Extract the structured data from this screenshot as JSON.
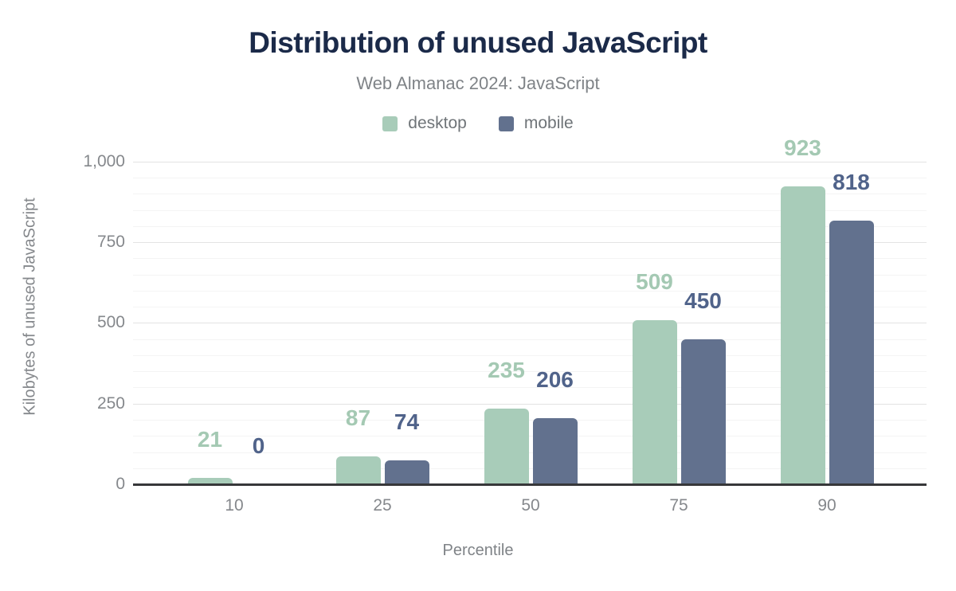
{
  "title": "Distribution of unused JavaScript",
  "subtitle": "Web Almanac 2024: JavaScript",
  "x_axis_title": "Percentile",
  "y_axis_title": "Kilobytes of unused JavaScript",
  "colors": {
    "title_navy": "#1b2a49",
    "text_gray": "#7f8387",
    "tick_gray": "#85888c",
    "desktop_green": "#a8ccb9",
    "mobile_slate": "#62718e",
    "desktop_label": "#a4c9b3",
    "mobile_label": "#50638a",
    "major_gridline": "#e3e3e3",
    "minor_gridline": "#f4f4f4",
    "axis_line": "#37383a"
  },
  "chart_data": {
    "type": "bar",
    "title": "Distribution of unused JavaScript",
    "subtitle": "Web Almanac 2024: JavaScript",
    "categories": [
      "10",
      "25",
      "50",
      "75",
      "90"
    ],
    "series": [
      {
        "name": "desktop",
        "color": "#a8ccb9",
        "label_color": "#a4c9b3",
        "values": [
          21,
          87,
          235,
          509,
          923
        ]
      },
      {
        "name": "mobile",
        "color": "#62718e",
        "label_color": "#50638a",
        "values": [
          0,
          74,
          206,
          450,
          818
        ]
      }
    ],
    "xlabel": "Percentile",
    "ylabel": "Kilobytes of unused JavaScript",
    "ylim": [
      0,
      1000
    ],
    "yticks": [
      {
        "value": 0,
        "label": "0"
      },
      {
        "value": 250,
        "label": "250"
      },
      {
        "value": 500,
        "label": "500"
      },
      {
        "value": 750,
        "label": "750"
      },
      {
        "value": 1000,
        "label": "1,000"
      }
    ],
    "minor_grid_step": 50,
    "major_grid_step": 250,
    "grid": true,
    "legend_position": "top",
    "data_labels": true
  }
}
